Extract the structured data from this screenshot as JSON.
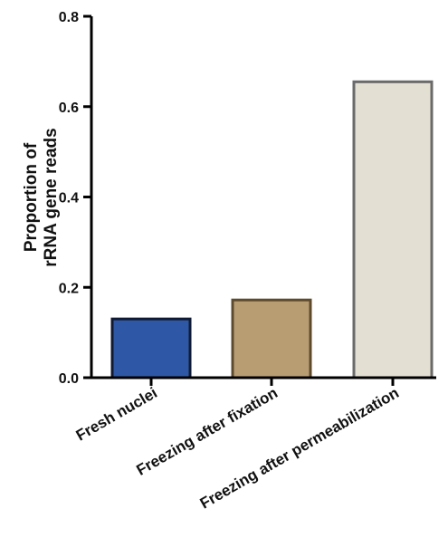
{
  "chart_data": {
    "type": "bar",
    "title": "",
    "xlabel": "",
    "ylabel_lines": [
      "Proportion of",
      "rRNA gene reads"
    ],
    "categories": [
      "Fresh nuclei",
      "Freezing after fixation",
      "Freezing after permeabilization"
    ],
    "values": [
      0.13,
      0.172,
      0.655
    ],
    "ylim": [
      0,
      0.8
    ],
    "yticks": [
      0.0,
      0.2,
      0.4,
      0.6,
      0.8
    ],
    "ytick_labels": [
      "0.0",
      "0.2",
      "0.4",
      "0.6",
      "0.8"
    ],
    "grid": false,
    "legend": "none",
    "bar_fills": [
      "#2e58a6",
      "#b89d73",
      "#e3e0d3"
    ],
    "bar_strokes": [
      "#111a33",
      "#5e4a2c",
      "#6a6a6a"
    ]
  }
}
